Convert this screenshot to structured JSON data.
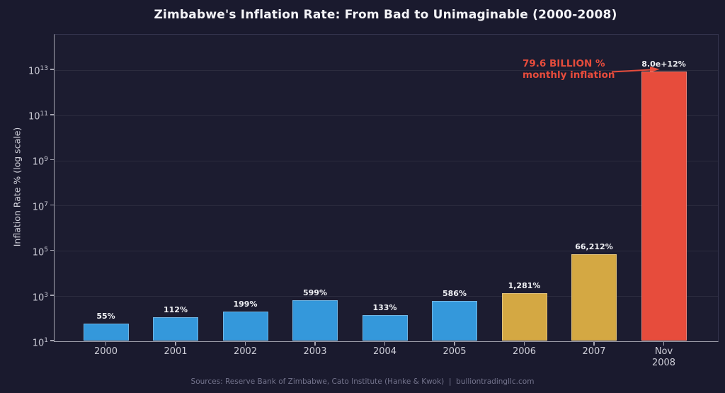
{
  "chart_data": {
    "type": "bar",
    "title": "Zimbabwe's Inflation Rate: From Bad to Unimaginable (2000-2008)",
    "ylabel": "Inflation Rate % (log scale)",
    "yscale": "log",
    "ylim": [
      10,
      370000000000000
    ],
    "ytick_exponents": [
      13,
      11,
      9,
      7,
      5,
      3,
      1
    ],
    "grid": "horizontal-major",
    "legend": "none",
    "bars": [
      {
        "category": "2000",
        "value": 55,
        "label": "55%",
        "color": "#3498db"
      },
      {
        "category": "2001",
        "value": 112,
        "label": "112%",
        "color": "#3498db"
      },
      {
        "category": "2002",
        "value": 199,
        "label": "199%",
        "color": "#3498db"
      },
      {
        "category": "2003",
        "value": 599,
        "label": "599%",
        "color": "#3498db"
      },
      {
        "category": "2004",
        "value": 133,
        "label": "133%",
        "color": "#3498db"
      },
      {
        "category": "2005",
        "value": 586,
        "label": "586%",
        "color": "#3498db"
      },
      {
        "category": "2006",
        "value": 1281,
        "label": "1,281%",
        "color": "#d4a843"
      },
      {
        "category": "2007",
        "value": 66212,
        "label": "66,212%",
        "color": "#d4a843"
      },
      {
        "category": "Nov\n2008",
        "value": 8000000000000.0,
        "label": "8.0e+12%",
        "color": "#e74c3c"
      }
    ],
    "annotation": {
      "line1": "79.6 BILLION %",
      "line2": "monthly inflation",
      "color": "#e74c3c"
    },
    "footer": "Sources: Reserve Bank of Zimbabwe, Cato Institute (Hanke & Kwok)  |  bulliontradingllc.com",
    "colors": {
      "background": "#1a1a2e",
      "blue_bar": "#3498db",
      "gold_bar": "#d4a843",
      "red_bar": "#e74c3c",
      "title_text": "#f4f4f8",
      "tick_text": "#c9c9d4",
      "value_label_text": "#eff0f4",
      "footer_text": "#73738c",
      "axis": "#a5a5b1",
      "grid": "rgba(255,255,255,0.07)"
    }
  }
}
